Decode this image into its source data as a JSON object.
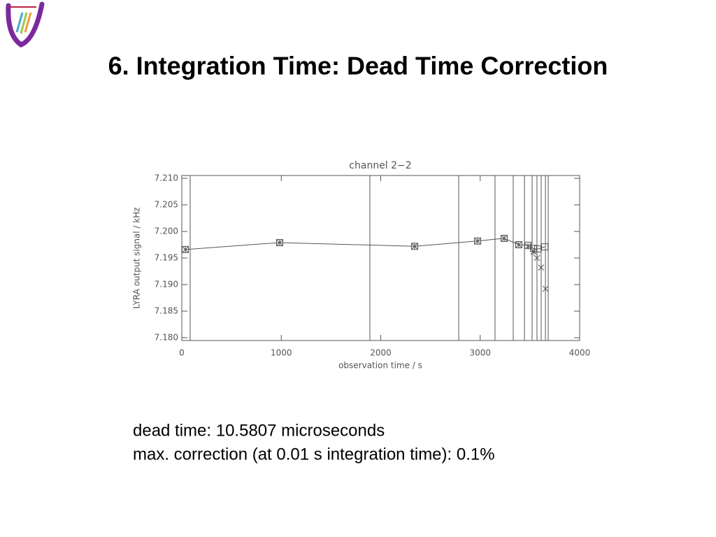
{
  "header": {
    "title": "6. Integration Time: Dead Time Correction"
  },
  "chart_data": {
    "type": "line",
    "title": "channel 2−2",
    "x_label": "observation time / s",
    "y_label": "LYRA output signal / kHz",
    "xlim": [
      0,
      4000
    ],
    "xticks": [
      0,
      1000,
      2000,
      3000,
      4000
    ],
    "ylim": [
      7.18,
      7.21
    ],
    "yticks": [
      {
        "value": 7.18,
        "label": "7.180"
      },
      {
        "value": 7.185,
        "label": "7.185"
      },
      {
        "value": 7.19,
        "label": "7.190"
      },
      {
        "value": 7.195,
        "label": "7.195"
      },
      {
        "value": 7.2,
        "label": "7.200"
      },
      {
        "value": 7.205,
        "label": "7.205"
      },
      {
        "value": 7.21,
        "label": "7.210"
      }
    ],
    "vlines": [
      84,
      1891,
      2784,
      3149,
      3332,
      3445,
      3522,
      3571,
      3613,
      3656,
      3684
    ],
    "color": "#555555",
    "series": [
      {
        "marker": "box",
        "x": [
          35,
          984,
          2341,
          2974,
          3241,
          3388,
          3480,
          3536,
          3578,
          3649
        ],
        "values": [
          7.1966,
          7.1979,
          7.1972,
          7.1982,
          7.1987,
          7.1975,
          7.1974,
          7.1968,
          7.1967,
          7.1971
        ]
      },
      {
        "marker": "asterisk",
        "x": [
          35,
          984,
          2341,
          2974,
          3241,
          3388,
          3480,
          3536,
          3571,
          3613,
          3656
        ],
        "values": [
          7.1966,
          7.1979,
          7.1972,
          7.1982,
          7.1987,
          7.1975,
          7.1972,
          7.1962,
          7.195,
          7.1932,
          7.1892
        ]
      }
    ]
  },
  "notes": [
    "dead time: 10.5807 microseconds",
    "max. correction (at 0.01 s integration time): 0.1%"
  ]
}
